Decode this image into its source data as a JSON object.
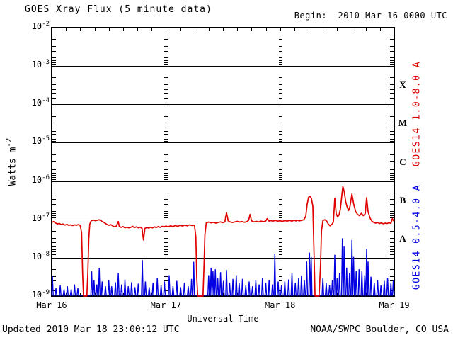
{
  "header": {
    "title": "GOES Xray Flux (5 minute data)",
    "begin": "Begin:  2010 Mar 16 0000 UTC"
  },
  "footer": {
    "updated": "Updated 2010 Mar 18 23:00:12 UTC",
    "source": "NOAA/SWPC Boulder, CO USA"
  },
  "colors": {
    "long_channel": "#e00000",
    "short_channel": "#0000e0",
    "axis": "#000000",
    "background": "#ffffff"
  },
  "chart_data": {
    "type": "line",
    "title": "GOES Xray Flux (5 minute data)",
    "xlabel": "Universal Time",
    "ylabel_base": "Watts m",
    "ylabel_exp": "-2",
    "x_unit": "hours since 2010 Mar 16 0000 UTC",
    "xlim": [
      0,
      72
    ],
    "ylim_log10": [
      -9,
      -2
    ],
    "grid": "solid horizontal lines at each decade; dashed vertical lines at day boundaries",
    "y_tick_exponents": [
      -2,
      -3,
      -4,
      -5,
      -6,
      -7,
      -8,
      -9
    ],
    "x_ticks": [
      {
        "hour": 0,
        "label": "Mar 16"
      },
      {
        "hour": 24,
        "label": "Mar 17"
      },
      {
        "hour": 48,
        "label": "Mar 18"
      },
      {
        "hour": 72,
        "label": "Mar 19"
      }
    ],
    "x_minor_tick_hours": 3,
    "flare_classes": [
      {
        "label": "X",
        "log10_center": -3.5
      },
      {
        "label": "M",
        "log10_center": -4.5
      },
      {
        "label": "C",
        "log10_center": -5.5
      },
      {
        "label": "B",
        "log10_center": -6.5
      },
      {
        "label": "A",
        "log10_center": -7.5
      }
    ],
    "eclipse_gaps_hours": [
      [
        6.25,
        7.7
      ],
      [
        30.35,
        32.15
      ],
      [
        55.15,
        56.65
      ]
    ],
    "series": [
      {
        "name": "GOES14 1.0-8.0 A",
        "color": "#e00000",
        "style": "line",
        "points": [
          [
            0,
            8.3e-08
          ],
          [
            0.4,
            8.8e-08
          ],
          [
            0.8,
            8.1e-08
          ],
          [
            1.2,
            7.6e-08
          ],
          [
            1.6,
            7.9e-08
          ],
          [
            2,
            7.3e-08
          ],
          [
            2.4,
            7.6e-08
          ],
          [
            2.8,
            7.1e-08
          ],
          [
            3.2,
            7.4e-08
          ],
          [
            3.6,
            7e-08
          ],
          [
            4,
            7.2e-08
          ],
          [
            4.4,
            6.9e-08
          ],
          [
            4.8,
            7.2e-08
          ],
          [
            5.2,
            7e-08
          ],
          [
            5.6,
            7.3e-08
          ],
          [
            6,
            7e-08
          ],
          [
            6.3,
            4.5e-08
          ],
          [
            6.5,
            4e-09
          ],
          [
            6.7,
            7e-10
          ],
          [
            7.4,
            7e-10
          ],
          [
            7.6,
            4e-09
          ],
          [
            7.8,
            3e-08
          ],
          [
            8,
            7.5e-08
          ],
          [
            8.3,
            9.2e-08
          ],
          [
            8.8,
            9.6e-08
          ],
          [
            9.2,
            9.2e-08
          ],
          [
            9.6,
            9.5e-08
          ],
          [
            10,
            9.8e-08
          ],
          [
            10.4,
            9.2e-08
          ],
          [
            10.8,
            8.6e-08
          ],
          [
            11.2,
            8e-08
          ],
          [
            11.6,
            7.4e-08
          ],
          [
            12,
            7e-08
          ],
          [
            12.4,
            7.3e-08
          ],
          [
            12.8,
            6.8e-08
          ],
          [
            13.2,
            6.4e-08
          ],
          [
            13.6,
            6.7e-08
          ],
          [
            14,
            8.8e-08
          ],
          [
            14.2,
            6.6e-08
          ],
          [
            14.6,
            6.2e-08
          ],
          [
            15,
            6.5e-08
          ],
          [
            15.4,
            6e-08
          ],
          [
            15.8,
            6.3e-08
          ],
          [
            16.2,
            6e-08
          ],
          [
            16.6,
            6.2e-08
          ],
          [
            17,
            6.6e-08
          ],
          [
            17.4,
            6.1e-08
          ],
          [
            17.8,
            6.4e-08
          ],
          [
            18.2,
            6e-08
          ],
          [
            18.6,
            6.3e-08
          ],
          [
            19,
            5.8e-08
          ],
          [
            19.3,
            2.9e-08
          ],
          [
            19.6,
            5.8e-08
          ],
          [
            20,
            6.2e-08
          ],
          [
            20.4,
            5.9e-08
          ],
          [
            20.8,
            6.3e-08
          ],
          [
            21.2,
            6e-08
          ],
          [
            21.6,
            6.4e-08
          ],
          [
            22,
            6.1e-08
          ],
          [
            22.4,
            6.5e-08
          ],
          [
            22.8,
            6.2e-08
          ],
          [
            23.2,
            6.6e-08
          ],
          [
            23.6,
            6.4e-08
          ],
          [
            24,
            6.7e-08
          ],
          [
            24.5,
            6.4e-08
          ],
          [
            25,
            6.8e-08
          ],
          [
            25.5,
            6.5e-08
          ],
          [
            26,
            6.9e-08
          ],
          [
            26.5,
            6.6e-08
          ],
          [
            27,
            7e-08
          ],
          [
            27.5,
            6.7e-08
          ],
          [
            28,
            7.1e-08
          ],
          [
            28.5,
            6.8e-08
          ],
          [
            29,
            7.2e-08
          ],
          [
            29.5,
            6.9e-08
          ],
          [
            30,
            7.1e-08
          ],
          [
            30.3,
            3.5e-08
          ],
          [
            30.5,
            3e-09
          ],
          [
            30.7,
            7e-10
          ],
          [
            31.8,
            7e-10
          ],
          [
            32,
            5e-09
          ],
          [
            32.2,
            4e-08
          ],
          [
            32.5,
            8.2e-08
          ],
          [
            33,
            8.5e-08
          ],
          [
            33.5,
            8.1e-08
          ],
          [
            34,
            8.4e-08
          ],
          [
            34.5,
            8e-08
          ],
          [
            35,
            8.3e-08
          ],
          [
            35.5,
            8.6e-08
          ],
          [
            36,
            8.2e-08
          ],
          [
            36.4,
            8.6e-08
          ],
          [
            36.75,
            1.5e-07
          ],
          [
            37.1,
            9.2e-08
          ],
          [
            37.5,
            8.6e-08
          ],
          [
            38,
            8.3e-08
          ],
          [
            38.5,
            8.6e-08
          ],
          [
            39,
            8.9e-08
          ],
          [
            39.5,
            8.5e-08
          ],
          [
            40,
            8.8e-08
          ],
          [
            40.5,
            8.4e-08
          ],
          [
            41,
            8.7e-08
          ],
          [
            41.4,
            9.5e-08
          ],
          [
            41.7,
            1.35e-07
          ],
          [
            42,
            9.2e-08
          ],
          [
            42.5,
            8.6e-08
          ],
          [
            43,
            8.9e-08
          ],
          [
            43.5,
            8.6e-08
          ],
          [
            44,
            9e-08
          ],
          [
            44.5,
            8.7e-08
          ],
          [
            45,
            9.1e-08
          ],
          [
            45.3,
            1.05e-07
          ],
          [
            45.7,
            9e-08
          ],
          [
            46,
            9.3e-08
          ],
          [
            46.5,
            9e-08
          ],
          [
            47,
            9.4e-08
          ],
          [
            47.5,
            9e-08
          ],
          [
            48,
            9.2e-08
          ],
          [
            48.5,
            8.9e-08
          ],
          [
            49,
            9.3e-08
          ],
          [
            49.5,
            9e-08
          ],
          [
            50,
            9.4e-08
          ],
          [
            50.5,
            9e-08
          ],
          [
            51,
            9.6e-08
          ],
          [
            51.3,
            9.1e-08
          ],
          [
            51.7,
            9.5e-08
          ],
          [
            52,
            9.1e-08
          ],
          [
            52.5,
            9.4e-08
          ],
          [
            53,
            9.8e-08
          ],
          [
            53.4,
            1.2e-07
          ],
          [
            53.7,
            2.5e-07
          ],
          [
            54,
            3.8e-07
          ],
          [
            54.3,
            4e-07
          ],
          [
            54.6,
            3.5e-07
          ],
          [
            54.9,
            2.2e-07
          ],
          [
            55.1,
            2e-08
          ],
          [
            55.35,
            7e-10
          ],
          [
            56.2,
            7e-10
          ],
          [
            56.5,
            6e-09
          ],
          [
            56.7,
            5e-08
          ],
          [
            57,
            9.3e-08
          ],
          [
            57.4,
            9.8e-08
          ],
          [
            57.8,
            9e-08
          ],
          [
            58.2,
            7.4e-08
          ],
          [
            58.5,
            6.8e-08
          ],
          [
            58.9,
            7.4e-08
          ],
          [
            59.2,
            8.5e-08
          ],
          [
            59.5,
            3.6e-07
          ],
          [
            59.8,
            1.4e-07
          ],
          [
            60.1,
            1.15e-07
          ],
          [
            60.4,
            1.3e-07
          ],
          [
            60.7,
            1.9e-07
          ],
          [
            61,
            4.5e-07
          ],
          [
            61.2,
            7.2e-07
          ],
          [
            61.5,
            5.2e-07
          ],
          [
            61.8,
            2.9e-07
          ],
          [
            62.1,
            2.1e-07
          ],
          [
            62.4,
            1.7e-07
          ],
          [
            62.7,
            2.2e-07
          ],
          [
            63.1,
            4.6e-07
          ],
          [
            63.5,
            2.4e-07
          ],
          [
            63.9,
            1.6e-07
          ],
          [
            64.3,
            1.35e-07
          ],
          [
            64.7,
            1.25e-07
          ],
          [
            65.1,
            1.45e-07
          ],
          [
            65.5,
            1.25e-07
          ],
          [
            65.9,
            1.4e-07
          ],
          [
            66.2,
            3.7e-07
          ],
          [
            66.5,
            1.6e-07
          ],
          [
            66.9,
            1.1e-07
          ],
          [
            67.3,
            9e-08
          ],
          [
            67.7,
            8.3e-08
          ],
          [
            68.1,
            8e-08
          ],
          [
            68.5,
            8.3e-08
          ],
          [
            68.9,
            7.8e-08
          ],
          [
            69.3,
            8.1e-08
          ],
          [
            69.7,
            7.7e-08
          ],
          [
            70.1,
            8e-08
          ],
          [
            70.5,
            7.8e-08
          ],
          [
            70.9,
            8.2e-08
          ],
          [
            71.3,
            7.9e-08
          ],
          [
            71.6,
            1.05e-07
          ],
          [
            71.85,
            9.2e-08
          ],
          [
            72,
            9.5e-08
          ]
        ]
      },
      {
        "name": "GOES14 0.5-4.0 A",
        "color": "#0000e0",
        "style": "spikes",
        "baseline": 1.05e-09,
        "spikes": [
          [
            0.15,
            3.4e-09
          ],
          [
            0.9,
            1.6e-09
          ],
          [
            1.8,
            1.9e-09
          ],
          [
            2.6,
            1.5e-09
          ],
          [
            3.3,
            1.8e-09
          ],
          [
            4.1,
            1.5e-09
          ],
          [
            4.8,
            2e-09
          ],
          [
            5.5,
            1.6e-09
          ],
          [
            8.4,
            4.4e-09
          ],
          [
            8.9,
            2.6e-09
          ],
          [
            9.5,
            2e-09
          ],
          [
            10,
            5.4e-09
          ],
          [
            10.6,
            2.4e-09
          ],
          [
            11.3,
            1.8e-09
          ],
          [
            12,
            2.6e-09
          ],
          [
            12.6,
            1.8e-09
          ],
          [
            13.4,
            2.3e-09
          ],
          [
            14,
            4e-09
          ],
          [
            14.7,
            2e-09
          ],
          [
            15.4,
            2.7e-09
          ],
          [
            16.1,
            1.8e-09
          ],
          [
            16.8,
            2.3e-09
          ],
          [
            17.5,
            1.7e-09
          ],
          [
            18.2,
            2.1e-09
          ],
          [
            19.05,
            8.7e-09
          ],
          [
            19.7,
            2.4e-09
          ],
          [
            20.5,
            1.7e-09
          ],
          [
            21.3,
            2.2e-09
          ],
          [
            22.2,
            3e-09
          ],
          [
            23,
            1.9e-09
          ],
          [
            23.7,
            2.4e-09
          ],
          [
            24.7,
            3.5e-09
          ],
          [
            25.5,
            1.8e-09
          ],
          [
            26.3,
            2.5e-09
          ],
          [
            27.1,
            1.7e-09
          ],
          [
            27.9,
            2.2e-09
          ],
          [
            28.7,
            1.8e-09
          ],
          [
            29.4,
            2.8e-09
          ],
          [
            29.85,
            7.8e-09
          ],
          [
            33,
            3.5e-09
          ],
          [
            33.5,
            5.5e-09
          ],
          [
            33.9,
            4.5e-09
          ],
          [
            34.4,
            5e-09
          ],
          [
            34.9,
            3e-09
          ],
          [
            35.5,
            4.2e-09
          ],
          [
            36.1,
            2.5e-09
          ],
          [
            36.75,
            4.8e-09
          ],
          [
            37.4,
            2.2e-09
          ],
          [
            38.1,
            2.8e-09
          ],
          [
            38.8,
            3.5e-09
          ],
          [
            39.4,
            2.2e-09
          ],
          [
            40.1,
            2.8e-09
          ],
          [
            40.8,
            1.9e-09
          ],
          [
            41.5,
            2.4e-09
          ],
          [
            42.2,
            1.8e-09
          ],
          [
            42.9,
            2.6e-09
          ],
          [
            43.6,
            2e-09
          ],
          [
            44.3,
            3e-09
          ],
          [
            45,
            2.2e-09
          ],
          [
            45.7,
            2.6e-09
          ],
          [
            46.4,
            2e-09
          ],
          [
            46.9,
            1.25e-08
          ],
          [
            47.6,
            2.4e-09
          ],
          [
            48.3,
            1.9e-09
          ],
          [
            49,
            2.4e-09
          ],
          [
            49.8,
            2.7e-09
          ],
          [
            50.5,
            4e-09
          ],
          [
            51.2,
            2.2e-09
          ],
          [
            51.9,
            3e-09
          ],
          [
            52.5,
            3.4e-09
          ],
          [
            53.1,
            2.6e-09
          ],
          [
            53.6,
            8e-09
          ],
          [
            54.2,
            1.35e-08
          ],
          [
            54.55,
            1.05e-08
          ],
          [
            57,
            3e-09
          ],
          [
            57.7,
            2.2e-09
          ],
          [
            58.4,
            1.9e-09
          ],
          [
            59,
            2.6e-09
          ],
          [
            59.5,
            1.2e-08
          ],
          [
            60,
            3e-09
          ],
          [
            60.5,
            4e-09
          ],
          [
            61.1,
            3.2e-08
          ],
          [
            61.45,
            2e-08
          ],
          [
            62,
            5.5e-09
          ],
          [
            62.6,
            4e-09
          ],
          [
            63.1,
            2.9e-08
          ],
          [
            63.45,
            1.05e-08
          ],
          [
            64,
            4.5e-09
          ],
          [
            64.6,
            5e-09
          ],
          [
            65.2,
            4.5e-09
          ],
          [
            65.8,
            3.5e-09
          ],
          [
            66.2,
            1.7e-08
          ],
          [
            66.5,
            8e-09
          ],
          [
            67.1,
            3.2e-09
          ],
          [
            67.8,
            2.2e-09
          ],
          [
            68.5,
            2.6e-09
          ],
          [
            69.2,
            1.9e-09
          ],
          [
            69.9,
            2.5e-09
          ],
          [
            70.6,
            3e-09
          ],
          [
            71.3,
            2.2e-09
          ],
          [
            71.8,
            2.6e-09
          ]
        ]
      }
    ]
  }
}
